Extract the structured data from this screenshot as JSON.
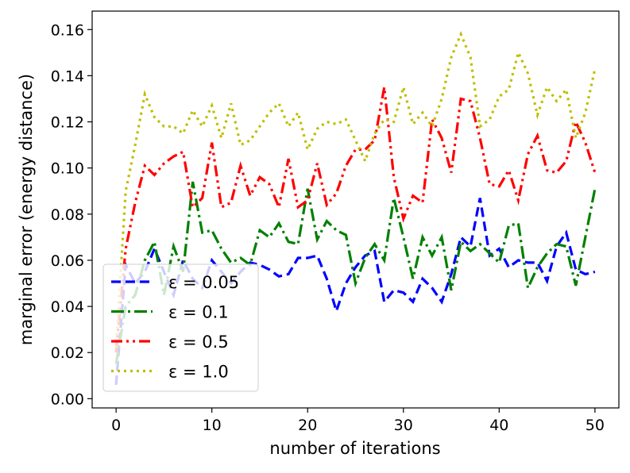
{
  "chart_data": {
    "type": "line",
    "title": "",
    "xlabel": "number of iterations",
    "ylabel": "marginal error (energy distance)",
    "xlim": [
      -2.5,
      52.5
    ],
    "ylim": [
      -0.004,
      0.168
    ],
    "xticks": [
      0,
      10,
      20,
      30,
      40,
      50
    ],
    "xtick_labels": [
      "0",
      "10",
      "20",
      "30",
      "40",
      "50"
    ],
    "yticks": [
      0.0,
      0.02,
      0.04,
      0.06,
      0.08,
      0.1,
      0.12,
      0.14,
      0.16
    ],
    "ytick_labels": [
      "0.00",
      "0.02",
      "0.04",
      "0.06",
      "0.08",
      "0.10",
      "0.12",
      "0.14",
      "0.16"
    ],
    "grid": false,
    "legend_position": "lower-left",
    "x": [
      0,
      1,
      2,
      3,
      4,
      5,
      6,
      7,
      8,
      9,
      10,
      11,
      12,
      13,
      14,
      15,
      16,
      17,
      18,
      19,
      20,
      21,
      22,
      23,
      24,
      25,
      26,
      27,
      28,
      29,
      30,
      31,
      32,
      33,
      34,
      35,
      36,
      37,
      38,
      39,
      40,
      41,
      42,
      43,
      44,
      45,
      46,
      47,
      48,
      49,
      50
    ],
    "series": [
      {
        "name": "ε = 0.05",
        "color": "#0000ff",
        "dash": "12,6",
        "values": [
          0.006,
          0.058,
          0.05,
          0.055,
          0.065,
          0.055,
          0.045,
          0.06,
          0.052,
          0.048,
          0.06,
          0.055,
          0.05,
          0.055,
          0.059,
          0.058,
          0.056,
          0.053,
          0.054,
          0.061,
          0.061,
          0.062,
          0.052,
          0.038,
          0.05,
          0.057,
          0.062,
          0.064,
          0.042,
          0.047,
          0.046,
          0.042,
          0.052,
          0.048,
          0.042,
          0.054,
          0.07,
          0.066,
          0.087,
          0.062,
          0.065,
          0.057,
          0.06,
          0.059,
          0.059,
          0.051,
          0.066,
          0.072,
          0.056,
          0.054,
          0.055
        ]
      },
      {
        "name": "ε = 0.1",
        "color": "#008000",
        "dash": "16,5,3,5",
        "values": [
          0.015,
          0.04,
          0.045,
          0.06,
          0.068,
          0.045,
          0.066,
          0.055,
          0.094,
          0.072,
          0.073,
          0.065,
          0.059,
          0.061,
          0.058,
          0.073,
          0.07,
          0.076,
          0.068,
          0.067,
          0.091,
          0.069,
          0.077,
          0.073,
          0.071,
          0.05,
          0.061,
          0.067,
          0.06,
          0.087,
          0.07,
          0.052,
          0.07,
          0.062,
          0.07,
          0.047,
          0.068,
          0.064,
          0.067,
          0.063,
          0.059,
          0.075,
          0.076,
          0.048,
          0.057,
          0.063,
          0.067,
          0.066,
          0.049,
          0.07,
          0.091
        ]
      },
      {
        "name": "ε = 0.5",
        "color": "#ff0000",
        "dash": "14,5,3,5,3,5",
        "values": [
          0.02,
          0.065,
          0.085,
          0.101,
          0.097,
          0.102,
          0.105,
          0.107,
          0.083,
          0.087,
          0.111,
          0.083,
          0.085,
          0.101,
          0.088,
          0.096,
          0.093,
          0.083,
          0.104,
          0.083,
          0.086,
          0.102,
          0.084,
          0.089,
          0.101,
          0.108,
          0.108,
          0.112,
          0.135,
          0.096,
          0.078,
          0.088,
          0.085,
          0.121,
          0.113,
          0.098,
          0.13,
          0.129,
          0.113,
          0.093,
          0.092,
          0.099,
          0.086,
          0.106,
          0.114,
          0.099,
          0.098,
          0.103,
          0.12,
          0.111,
          0.098
        ]
      },
      {
        "name": "ε = 1.0",
        "color": "#bfbf00",
        "dash": "3,5",
        "values": [
          0.022,
          0.09,
          0.11,
          0.132,
          0.122,
          0.118,
          0.118,
          0.115,
          0.125,
          0.118,
          0.127,
          0.113,
          0.128,
          0.11,
          0.112,
          0.118,
          0.124,
          0.128,
          0.118,
          0.124,
          0.108,
          0.117,
          0.12,
          0.119,
          0.121,
          0.112,
          0.103,
          0.115,
          0.121,
          0.12,
          0.135,
          0.119,
          0.124,
          0.118,
          0.13,
          0.148,
          0.158,
          0.148,
          0.118,
          0.121,
          0.131,
          0.134,
          0.15,
          0.141,
          0.123,
          0.135,
          0.129,
          0.134,
          0.113,
          0.124,
          0.143
        ]
      }
    ]
  }
}
